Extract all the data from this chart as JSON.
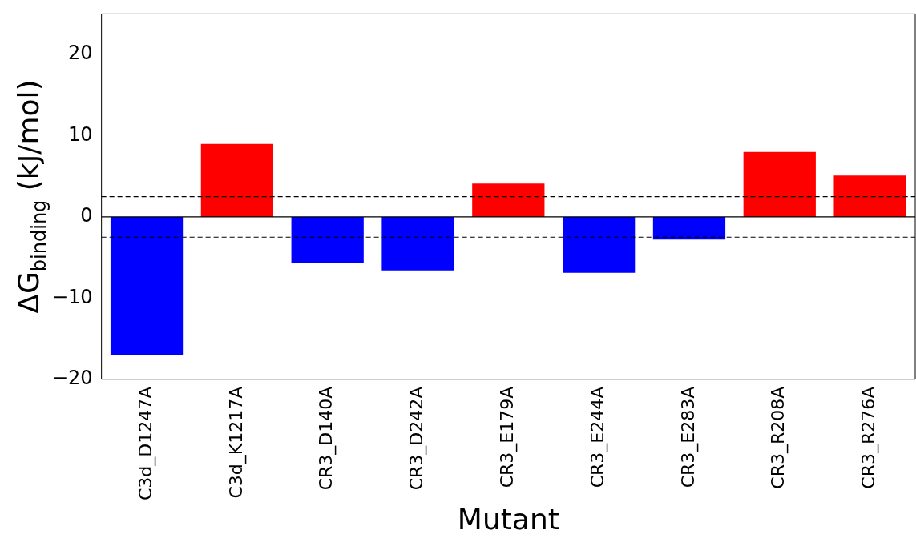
{
  "chart_data": {
    "type": "bar",
    "xlabel": "Mutant",
    "ylabel": "ΔG$_{binding}$ (kJ/mol)",
    "categories": [
      "C3d_D1247A",
      "C3d_K1217A",
      "CR3_D140A",
      "CR3_D242A",
      "CR3_E179A",
      "CR3_E244A",
      "CR3_E283A",
      "CR3_R208A",
      "CR3_R276A"
    ],
    "values": [
      -17,
      9,
      -5.7,
      -6.6,
      4.1,
      -6.9,
      -2.8,
      8,
      5.1
    ],
    "colors": [
      "#0000ff",
      "#ff0000",
      "#0000ff",
      "#0000ff",
      "#ff0000",
      "#0000ff",
      "#0000ff",
      "#ff0000",
      "#ff0000"
    ],
    "ylim": [
      -20,
      25
    ],
    "yticks": [
      -20,
      -10,
      0,
      10,
      20
    ],
    "grid": false,
    "legend": false,
    "ref_lines": [
      {
        "axis": "y",
        "value": 0,
        "color": "#000000",
        "line_style": "solid"
      },
      {
        "axis": "y",
        "value": 2.5,
        "color": "#000000",
        "line_style": "dashed"
      },
      {
        "axis": "y",
        "value": -2.5,
        "color": "#000000",
        "line_style": "dashed"
      }
    ]
  }
}
